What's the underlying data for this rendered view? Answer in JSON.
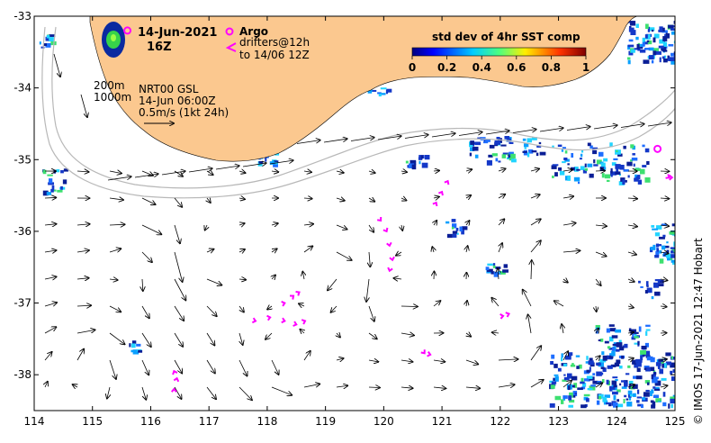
{
  "title": {
    "date": "14-Jun-2021",
    "time": "16Z"
  },
  "legend": {
    "argo_label": "Argo",
    "drifters_label": "drifters@12h",
    "drifters_to": "to 14/06 12Z",
    "argo_color": "#ff00ff",
    "drifter_color": "#ff00ff"
  },
  "colorbar": {
    "title": "std dev of 4hr SST comp",
    "tick_labels": [
      "0",
      "0.2",
      "0.4",
      "0.6",
      "0.8",
      "1"
    ],
    "range": [
      0,
      1
    ]
  },
  "info": {
    "depth_200": "200m",
    "depth_1000": "1000m",
    "product": "NRT00 GSL",
    "analysis_time": "14-Jun 06:00Z",
    "speed_scale": "0.5m/s (1kt 24h)"
  },
  "credit": "© IMOS 17-Jun-2021 12:47 Hobart",
  "colors": {
    "land": "#fbc88f",
    "ocean": "#ffffff",
    "sst_low": "#00008b",
    "sst_mid": "#00c8ff",
    "sst_high": "#8b0000",
    "isobath": "#b4b4b4"
  },
  "chart_data": {
    "type": "map",
    "xlabel": "",
    "ylabel": "",
    "x_ticks": [
      114,
      115,
      116,
      117,
      118,
      119,
      120,
      121,
      122,
      123,
      124,
      125
    ],
    "y_ticks": [
      -33,
      -34,
      -35,
      -36,
      -37,
      -38
    ],
    "xlim": [
      114,
      125
    ],
    "ylim": [
      -38.5,
      -33
    ],
    "argo_floats": [
      {
        "lon": 115.6,
        "lat": -33.2
      },
      {
        "lon": 124.7,
        "lat": -34.85
      }
    ],
    "drifter_tracks": [
      [
        [
          116.4,
          -38.3
        ],
        [
          116.4,
          -38.2
        ],
        [
          116.45,
          -38.05
        ],
        [
          116.4,
          -37.95
        ]
      ],
      [
        [
          117.55,
          -37.2
        ],
        [
          117.8,
          -37.25
        ],
        [
          118.05,
          -37.2
        ],
        [
          118.3,
          -37.25
        ],
        [
          118.5,
          -37.3
        ],
        [
          118.65,
          -37.25
        ]
      ],
      [
        [
          118.1,
          -37.05
        ],
        [
          118.3,
          -37.0
        ],
        [
          118.45,
          -36.9
        ],
        [
          118.55,
          -36.85
        ]
      ],
      [
        [
          119.8,
          -35.7
        ],
        [
          119.95,
          -35.85
        ],
        [
          120.05,
          -36.0
        ],
        [
          120.1,
          -36.2
        ],
        [
          120.15,
          -36.4
        ],
        [
          120.1,
          -36.55
        ]
      ],
      [
        [
          120.8,
          -35.75
        ],
        [
          120.9,
          -35.6
        ],
        [
          121.0,
          -35.45
        ],
        [
          121.1,
          -35.3
        ]
      ],
      [
        [
          120.6,
          -37.6
        ],
        [
          120.7,
          -37.7
        ],
        [
          120.8,
          -37.72
        ]
      ],
      [
        [
          121.9,
          -37.2
        ],
        [
          122.05,
          -37.18
        ],
        [
          122.15,
          -37.15
        ]
      ],
      [
        [
          124.8,
          -35.2
        ],
        [
          124.9,
          -35.25
        ],
        [
          124.95,
          -35.25
        ]
      ]
    ]
  }
}
